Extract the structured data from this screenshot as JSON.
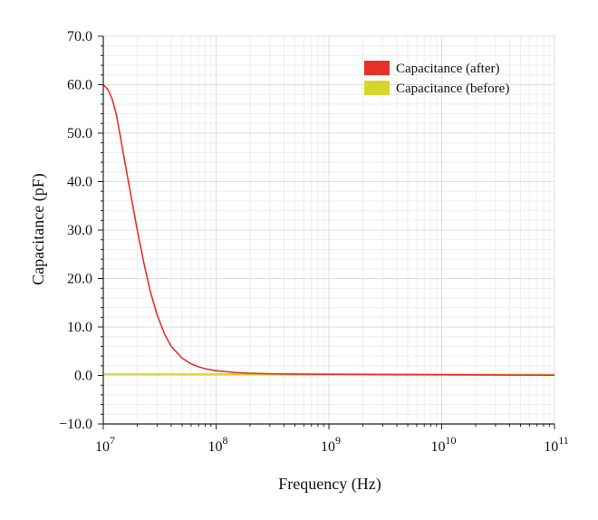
{
  "chart_data": {
    "type": "line",
    "xlabel": "Frequency (Hz)",
    "ylabel": "Capacitance (pF)",
    "x_scale": "log",
    "xlim": [
      10000000,
      100000000000
    ],
    "ylim": [
      -10.0,
      70.0
    ],
    "grid": true,
    "legend_position": "top-right",
    "y_ticks": [
      "−10.0",
      "0.0",
      "10.0",
      "20.0",
      "30.0",
      "40.0",
      "50.0",
      "60.0",
      "70.0"
    ],
    "x_ticks": [
      {
        "base": "10",
        "exp": "7"
      },
      {
        "base": "10",
        "exp": "8"
      },
      {
        "base": "10",
        "exp": "9"
      },
      {
        "base": "10",
        "exp": "10"
      },
      {
        "base": "10",
        "exp": "11"
      }
    ],
    "series": [
      {
        "name": "Capacitance (after)",
        "color": "#e8302a",
        "x": [
          10000000,
          11000000,
          12000000,
          13000000,
          14000000,
          15000000,
          17000000,
          20000000,
          23000000,
          26000000,
          30000000,
          35000000,
          40000000,
          50000000,
          60000000,
          70000000,
          80000000,
          100000000,
          120000000,
          150000000,
          200000000,
          300000000,
          500000000,
          1000000000,
          3000000000,
          10000000000,
          30000000000,
          100000000000
        ],
        "y": [
          60.0,
          59.0,
          57.0,
          54.0,
          50.0,
          46.0,
          39.0,
          30.0,
          23.0,
          17.5,
          12.5,
          8.5,
          6.0,
          3.6,
          2.4,
          1.8,
          1.4,
          1.0,
          0.8,
          0.6,
          0.45,
          0.35,
          0.3,
          0.25,
          0.2,
          0.15,
          0.1,
          0.05
        ]
      },
      {
        "name": "Capacitance (before)",
        "color": "#d6d62a",
        "x": [
          10000000,
          100000000000
        ],
        "y": [
          0.3,
          0.2
        ]
      }
    ]
  }
}
